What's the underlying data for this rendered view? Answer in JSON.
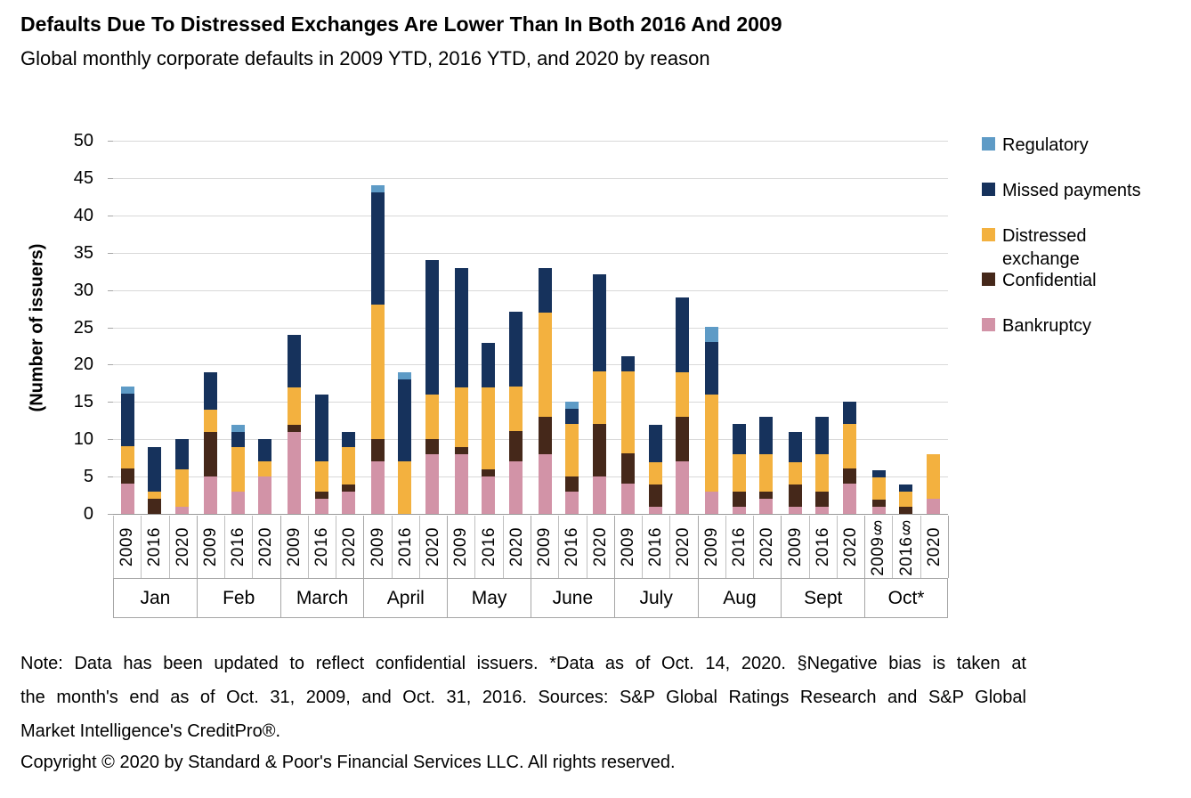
{
  "header": {
    "title": "Defaults Due To Distressed Exchanges Are Lower Than In Both 2016 And 2009",
    "subtitle": "Global monthly corporate defaults in 2009 YTD, 2016 YTD, and 2020 by reason"
  },
  "y_axis": {
    "title": "(Number of issuers)",
    "ticks": [
      0,
      5,
      10,
      15,
      20,
      25,
      30,
      35,
      40,
      45,
      50
    ]
  },
  "legend": [
    {
      "label": "Regulatory",
      "color": "#5E9BC6"
    },
    {
      "label": "Missed payments",
      "color": "#16325C"
    },
    {
      "label": "Distressed exchange",
      "color": "#F3B13F"
    },
    {
      "label": "Confidential",
      "color": "#45281A"
    },
    {
      "label": "Bankruptcy",
      "color": "#D293A7"
    }
  ],
  "chart_data": {
    "type": "bar",
    "stacked": true,
    "title": "Defaults Due To Distressed Exchanges Are Lower Than In Both 2016 And 2009",
    "subtitle": "Global monthly corporate defaults in 2009 YTD, 2016 YTD, and 2020 by reason",
    "xlabel": "",
    "ylabel": "(Number of issuers)",
    "ylim": [
      0,
      50
    ],
    "grid": true,
    "legend_position": "right",
    "month_groups": [
      "Jan",
      "Feb",
      "March",
      "April",
      "May",
      "June",
      "July",
      "Aug",
      "Sept",
      "Oct*"
    ],
    "bar_year_labels": [
      "2009",
      "2016",
      "2020",
      "2009",
      "2016",
      "2020",
      "2009",
      "2016",
      "2020",
      "2009",
      "2016",
      "2020",
      "2009",
      "2016",
      "2020",
      "2009",
      "2016",
      "2020",
      "2009",
      "2016",
      "2020",
      "2009",
      "2016",
      "2020",
      "2009",
      "2016",
      "2020",
      "2009§",
      "2016§",
      "2020"
    ],
    "series_order": "bottom to top",
    "series": [
      {
        "name": "Bankruptcy",
        "color": "#D293A7",
        "values": [
          4,
          0,
          1,
          5,
          3,
          5,
          11,
          2,
          3,
          7,
          0,
          8,
          8,
          5,
          7,
          8,
          3,
          5,
          4,
          1,
          7,
          3,
          1,
          2,
          1,
          1,
          4,
          1,
          0,
          2
        ]
      },
      {
        "name": "Confidential",
        "color": "#45281A",
        "values": [
          2,
          2,
          0,
          6,
          0,
          0,
          1,
          1,
          1,
          3,
          0,
          2,
          1,
          1,
          4,
          5,
          2,
          7,
          4,
          3,
          6,
          0,
          2,
          1,
          3,
          2,
          2,
          1,
          1,
          0
        ]
      },
      {
        "name": "Distressed exchange",
        "color": "#F3B13F",
        "values": [
          3,
          1,
          5,
          3,
          6,
          2,
          5,
          4,
          5,
          18,
          7,
          6,
          8,
          11,
          6,
          14,
          7,
          7,
          11,
          3,
          6,
          13,
          5,
          5,
          3,
          5,
          6,
          3,
          2,
          6
        ]
      },
      {
        "name": "Missed payments",
        "color": "#16325C",
        "values": [
          7,
          6,
          4,
          5,
          2,
          3,
          7,
          9,
          2,
          15,
          11,
          18,
          16,
          6,
          10,
          6,
          2,
          13,
          2,
          5,
          10,
          7,
          4,
          5,
          4,
          5,
          3,
          1,
          1,
          0
        ]
      },
      {
        "name": "Regulatory",
        "color": "#5E9BC6",
        "values": [
          1,
          0,
          0,
          0,
          1,
          0,
          0,
          0,
          0,
          1,
          1,
          0,
          0,
          0,
          0,
          0,
          1,
          0,
          0,
          0,
          0,
          2,
          0,
          0,
          0,
          0,
          0,
          0,
          0,
          0
        ]
      }
    ],
    "bar_totals": [
      17,
      9,
      10,
      19,
      12,
      10,
      24,
      16,
      11,
      44,
      19,
      34,
      33,
      23,
      27,
      33,
      15,
      32,
      21,
      12,
      29,
      25,
      12,
      13,
      11,
      13,
      15,
      6,
      4,
      8
    ]
  },
  "notes": {
    "lines": [
      "Note: Data has been updated to reflect confidential issuers. *Data as of Oct. 14, 2020. §Negative bias is taken at",
      "the month's end as of Oct. 31, 2009, and Oct. 31, 2016. Sources: S&P Global Ratings Research and S&P Global",
      "Market Intelligence's CreditPro®."
    ],
    "copyright": "Copyright © 2020 by Standard & Poor's Financial Services LLC. All rights reserved."
  },
  "colors": {
    "gridline": "#D9D9D9",
    "axis_line": "#A6A6A6",
    "cell_border": "#BFBFBF",
    "background": "#FFFFFF"
  }
}
